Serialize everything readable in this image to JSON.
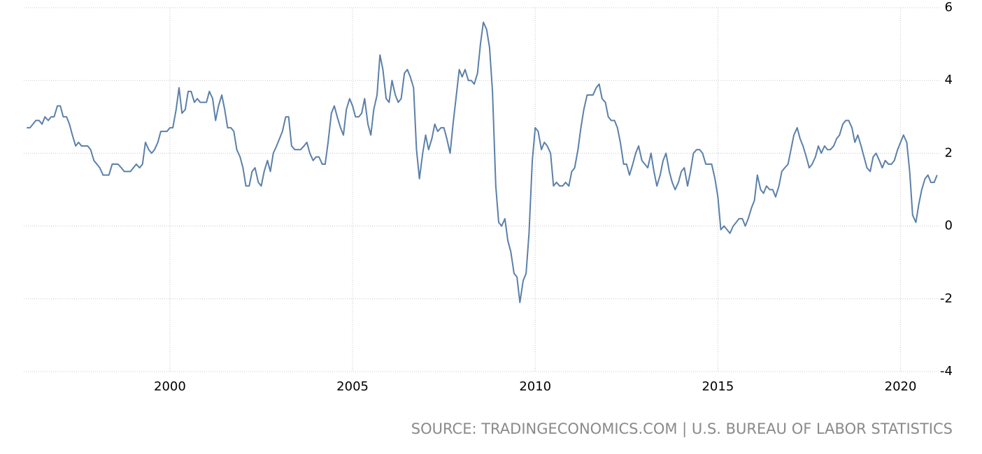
{
  "chart_data": {
    "type": "line",
    "source": "SOURCE: TRADINGECONOMICS.COM | U.S. BUREAU OF LABOR STATISTICS",
    "xlim": [
      1996,
      2021.1
    ],
    "xticks": [
      2000,
      2005,
      2010,
      2015,
      2020
    ],
    "ylim": [
      -4,
      6
    ],
    "yticks": [
      -4,
      -2,
      0,
      2,
      4,
      6
    ],
    "grid": true,
    "x": [
      1996.08,
      1996.17,
      1996.25,
      1996.33,
      1996.42,
      1996.5,
      1996.58,
      1996.67,
      1996.75,
      1996.83,
      1996.92,
      1997,
      1997.08,
      1997.17,
      1997.25,
      1997.33,
      1997.42,
      1997.5,
      1997.58,
      1997.67,
      1997.75,
      1997.83,
      1997.92,
      1998,
      1998.08,
      1998.17,
      1998.25,
      1998.33,
      1998.42,
      1998.5,
      1998.58,
      1998.67,
      1998.75,
      1998.83,
      1998.92,
      1999,
      1999.08,
      1999.17,
      1999.25,
      1999.33,
      1999.42,
      1999.5,
      1999.58,
      1999.67,
      1999.75,
      1999.83,
      1999.92,
      2000,
      2000.08,
      2000.17,
      2000.25,
      2000.33,
      2000.42,
      2000.5,
      2000.58,
      2000.67,
      2000.75,
      2000.83,
      2000.92,
      2001,
      2001.08,
      2001.17,
      2001.25,
      2001.33,
      2001.42,
      2001.5,
      2001.58,
      2001.67,
      2001.75,
      2001.83,
      2001.92,
      2002,
      2002.08,
      2002.17,
      2002.25,
      2002.33,
      2002.42,
      2002.5,
      2002.58,
      2002.67,
      2002.75,
      2002.83,
      2002.92,
      2003,
      2003.08,
      2003.17,
      2003.25,
      2003.33,
      2003.42,
      2003.5,
      2003.58,
      2003.67,
      2003.75,
      2003.83,
      2003.92,
      2004,
      2004.08,
      2004.17,
      2004.25,
      2004.33,
      2004.42,
      2004.5,
      2004.58,
      2004.67,
      2004.75,
      2004.83,
      2004.92,
      2005,
      2005.08,
      2005.17,
      2005.25,
      2005.33,
      2005.42,
      2005.5,
      2005.58,
      2005.67,
      2005.75,
      2005.83,
      2005.92,
      2006,
      2006.08,
      2006.17,
      2006.25,
      2006.33,
      2006.42,
      2006.5,
      2006.58,
      2006.67,
      2006.75,
      2006.83,
      2006.92,
      2007,
      2007.08,
      2007.17,
      2007.25,
      2007.33,
      2007.42,
      2007.5,
      2007.58,
      2007.67,
      2007.75,
      2007.83,
      2007.92,
      2008,
      2008.08,
      2008.17,
      2008.25,
      2008.33,
      2008.42,
      2008.5,
      2008.58,
      2008.67,
      2008.75,
      2008.83,
      2008.92,
      2009,
      2009.08,
      2009.17,
      2009.25,
      2009.33,
      2009.42,
      2009.5,
      2009.58,
      2009.67,
      2009.75,
      2009.83,
      2009.92,
      2010,
      2010.08,
      2010.17,
      2010.25,
      2010.33,
      2010.42,
      2010.5,
      2010.58,
      2010.67,
      2010.75,
      2010.83,
      2010.92,
      2011,
      2011.08,
      2011.17,
      2011.25,
      2011.33,
      2011.42,
      2011.5,
      2011.58,
      2011.67,
      2011.75,
      2011.83,
      2011.92,
      2012,
      2012.08,
      2012.17,
      2012.25,
      2012.33,
      2012.42,
      2012.5,
      2012.58,
      2012.67,
      2012.75,
      2012.83,
      2012.92,
      2013,
      2013.08,
      2013.17,
      2013.25,
      2013.33,
      2013.42,
      2013.5,
      2013.58,
      2013.67,
      2013.75,
      2013.83,
      2013.92,
      2014,
      2014.08,
      2014.17,
      2014.25,
      2014.33,
      2014.42,
      2014.5,
      2014.58,
      2014.67,
      2014.75,
      2014.83,
      2014.92,
      2015,
      2015.08,
      2015.17,
      2015.25,
      2015.33,
      2015.42,
      2015.5,
      2015.58,
      2015.67,
      2015.75,
      2015.83,
      2015.92,
      2016,
      2016.08,
      2016.17,
      2016.25,
      2016.33,
      2016.42,
      2016.5,
      2016.58,
      2016.67,
      2016.75,
      2016.83,
      2016.92,
      2017,
      2017.08,
      2017.17,
      2017.25,
      2017.33,
      2017.42,
      2017.5,
      2017.58,
      2017.67,
      2017.75,
      2017.83,
      2017.92,
      2018,
      2018.08,
      2018.17,
      2018.25,
      2018.33,
      2018.42,
      2018.5,
      2018.58,
      2018.67,
      2018.75,
      2018.83,
      2018.92,
      2019,
      2019.08,
      2019.17,
      2019.25,
      2019.33,
      2019.42,
      2019.5,
      2019.58,
      2019.67,
      2019.75,
      2019.83,
      2019.92,
      2020,
      2020.08,
      2020.17,
      2020.25,
      2020.33,
      2020.42,
      2020.5,
      2020.58,
      2020.67,
      2020.75,
      2020.83,
      2020.92,
      2021
    ],
    "series": [
      {
        "color": "#5b80a9",
        "values": [
          2.7,
          2.7,
          2.8,
          2.9,
          2.9,
          2.8,
          3.0,
          2.9,
          3.0,
          3.0,
          3.3,
          3.3,
          3.0,
          3.0,
          2.8,
          2.5,
          2.2,
          2.3,
          2.2,
          2.2,
          2.2,
          2.1,
          1.8,
          1.7,
          1.6,
          1.4,
          1.4,
          1.4,
          1.7,
          1.7,
          1.7,
          1.6,
          1.5,
          1.5,
          1.5,
          1.6,
          1.7,
          1.6,
          1.7,
          2.3,
          2.1,
          2.0,
          2.1,
          2.3,
          2.6,
          2.6,
          2.6,
          2.7,
          2.7,
          3.2,
          3.8,
          3.1,
          3.2,
          3.7,
          3.7,
          3.4,
          3.5,
          3.4,
          3.4,
          3.4,
          3.7,
          3.5,
          2.9,
          3.3,
          3.6,
          3.2,
          2.7,
          2.7,
          2.6,
          2.1,
          1.9,
          1.6,
          1.1,
          1.1,
          1.5,
          1.6,
          1.2,
          1.1,
          1.5,
          1.8,
          1.5,
          2.0,
          2.2,
          2.4,
          2.6,
          3.0,
          3.0,
          2.2,
          2.1,
          2.1,
          2.1,
          2.2,
          2.3,
          2.0,
          1.8,
          1.9,
          1.9,
          1.7,
          1.7,
          2.3,
          3.1,
          3.3,
          3.0,
          2.7,
          2.5,
          3.2,
          3.5,
          3.3,
          3.0,
          3.0,
          3.1,
          3.5,
          2.8,
          2.5,
          3.2,
          3.6,
          4.7,
          4.3,
          3.5,
          3.4,
          4.0,
          3.6,
          3.4,
          3.5,
          4.2,
          4.3,
          4.1,
          3.8,
          2.1,
          1.3,
          2.0,
          2.5,
          2.1,
          2.4,
          2.8,
          2.6,
          2.7,
          2.7,
          2.4,
          2.0,
          2.8,
          3.5,
          4.3,
          4.1,
          4.3,
          4.0,
          4.0,
          3.9,
          4.2,
          5.0,
          5.6,
          5.4,
          4.9,
          3.7,
          1.1,
          0.1,
          0.0,
          0.2,
          -0.4,
          -0.7,
          -1.3,
          -1.4,
          -2.1,
          -1.5,
          -1.3,
          -0.2,
          1.8,
          2.7,
          2.6,
          2.1,
          2.3,
          2.2,
          2.0,
          1.1,
          1.2,
          1.1,
          1.1,
          1.2,
          1.1,
          1.5,
          1.6,
          2.1,
          2.7,
          3.2,
          3.6,
          3.6,
          3.6,
          3.8,
          3.9,
          3.5,
          3.4,
          3.0,
          2.9,
          2.9,
          2.7,
          2.3,
          1.7,
          1.7,
          1.4,
          1.7,
          2.0,
          2.2,
          1.8,
          1.7,
          1.6,
          2.0,
          1.5,
          1.1,
          1.4,
          1.8,
          2.0,
          1.5,
          1.2,
          1.0,
          1.2,
          1.5,
          1.6,
          1.1,
          1.5,
          2.0,
          2.1,
          2.1,
          2.0,
          1.7,
          1.7,
          1.7,
          1.3,
          0.8,
          -0.1,
          0.0,
          -0.1,
          -0.2,
          0.0,
          0.1,
          0.2,
          0.2,
          0.0,
          0.2,
          0.5,
          0.7,
          1.4,
          1.0,
          0.9,
          1.1,
          1.0,
          1.0,
          0.8,
          1.1,
          1.5,
          1.6,
          1.7,
          2.1,
          2.5,
          2.7,
          2.4,
          2.2,
          1.9,
          1.6,
          1.7,
          1.9,
          2.2,
          2.0,
          2.2,
          2.1,
          2.1,
          2.2,
          2.4,
          2.5,
          2.8,
          2.9,
          2.9,
          2.7,
          2.3,
          2.5,
          2.2,
          1.9,
          1.6,
          1.5,
          1.9,
          2.0,
          1.8,
          1.6,
          1.8,
          1.7,
          1.7,
          1.8,
          2.1,
          2.3,
          2.5,
          2.3,
          1.5,
          0.3,
          0.1,
          0.6,
          1.0,
          1.3,
          1.4,
          1.2,
          1.2,
          1.4
        ]
      }
    ]
  }
}
